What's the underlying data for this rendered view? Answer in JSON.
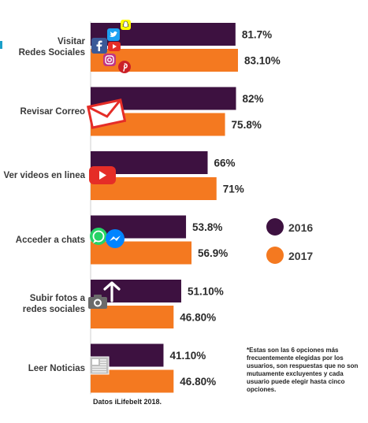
{
  "chart_data": {
    "type": "bar",
    "orientation": "horizontal",
    "categories": [
      "Visitar\nRedes Sociales",
      "Revisar Correo",
      "Ver videos en linea",
      "Acceder a chats",
      "Subir fotos a\nredes sociales",
      "Leer Noticias"
    ],
    "series": [
      {
        "name": "2016",
        "color": "#3d1140",
        "values": [
          81.7,
          82,
          66,
          53.8,
          51.1,
          41.1
        ],
        "value_labels": [
          "81.7%",
          "82%",
          "66%",
          "53.8%",
          "51.10%",
          "41.10%"
        ]
      },
      {
        "name": "2017",
        "color": "#f47920",
        "values": [
          83.1,
          75.8,
          71,
          56.9,
          46.8,
          46.8
        ],
        "value_labels": [
          "83.10%",
          "75.8%",
          "71%",
          "56.9%",
          "46.80%",
          "46.80%"
        ]
      }
    ],
    "xlim": [
      0,
      100
    ],
    "grid": false,
    "legend_position": "right"
  },
  "legend": {
    "items": [
      {
        "label": "2016",
        "color": "#3d1140"
      },
      {
        "label": "2017",
        "color": "#f47920"
      }
    ]
  },
  "footnote": "*Estas son las 6 opciones más frecuentemente elegidas por los usuarios, son respuestas que no son mutuamente excluyentes y cada usuario puede elegir hasta cinco opciones.",
  "source": "Datos iLifebelt 2018.",
  "icons": [
    "twitter-icon",
    "facebook-icon",
    "youtube-icon",
    "instagram-icon",
    "pinterest-icon",
    "snapchat-icon",
    "mail-icon",
    "play-icon",
    "whatsapp-icon",
    "messenger-icon",
    "camera-icon",
    "upload-arrow-icon",
    "newspaper-icon"
  ]
}
